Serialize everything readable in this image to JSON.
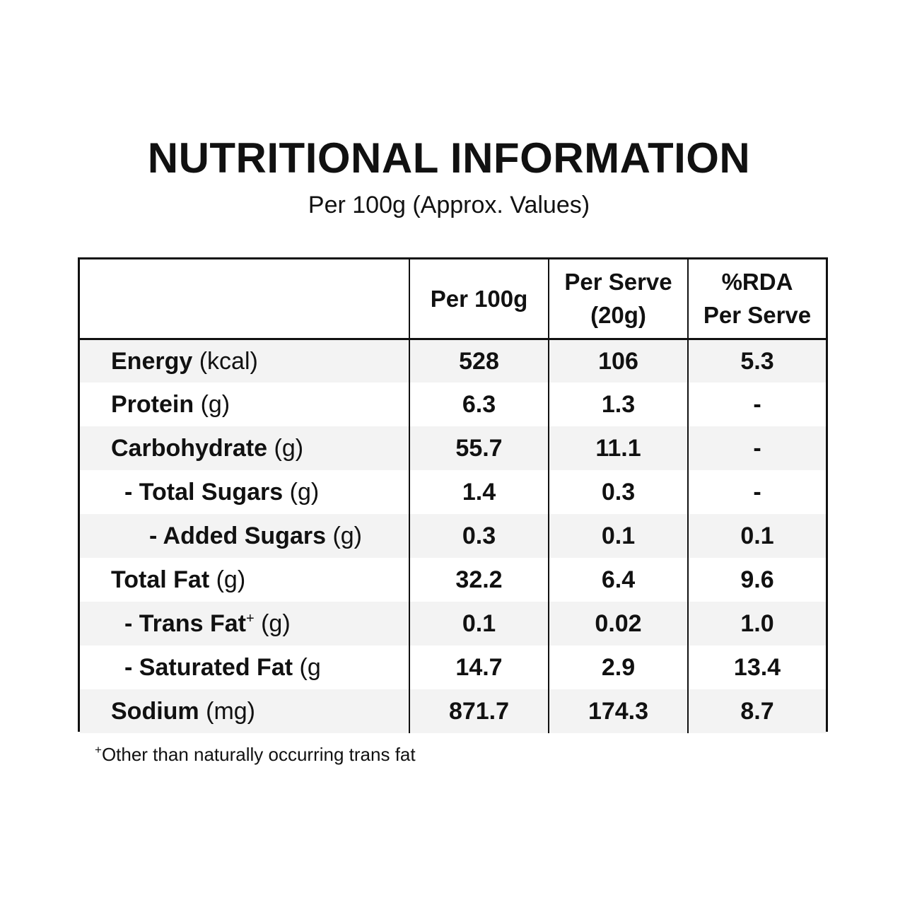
{
  "title": "NUTRITIONAL INFORMATION",
  "subtitle": "Per 100g (Approx. Values)",
  "table": {
    "headers": {
      "per_100g": "Per 100g",
      "per_serve_line1": "Per Serve",
      "per_serve_line2": "(20g)",
      "rda_line1": "%RDA",
      "rda_line2": "Per Serve"
    },
    "rows": [
      {
        "prefix": "",
        "name": "Energy",
        "unit": " (kcal)",
        "mark": "",
        "per_100g": "528",
        "per_serve": "106",
        "rda": "5.3"
      },
      {
        "prefix": "",
        "name": "Protein",
        "unit": " (g)",
        "mark": "",
        "per_100g": "6.3",
        "per_serve": "1.3",
        "rda": "-"
      },
      {
        "prefix": "",
        "name": "Carbohydrate",
        "unit": " (g)",
        "mark": "",
        "per_100g": "55.7",
        "per_serve": "11.1",
        "rda": "-"
      },
      {
        "prefix": "- ",
        "name": "Total Sugars",
        "unit": " (g)",
        "mark": "",
        "per_100g": "1.4",
        "per_serve": "0.3",
        "rda": "-"
      },
      {
        "prefix": "- ",
        "name": "Added Sugars",
        "unit": " (g)",
        "mark": "",
        "per_100g": "0.3",
        "per_serve": "0.1",
        "rda": "0.1"
      },
      {
        "prefix": "",
        "name": "Total Fat",
        "unit": " (g)",
        "mark": "",
        "per_100g": "32.2",
        "per_serve": "6.4",
        "rda": "9.6"
      },
      {
        "prefix": "- ",
        "name": "Trans Fat",
        "unit": " (g)",
        "mark": "+",
        "per_100g": "0.1",
        "per_serve": "0.02",
        "rda": "1.0"
      },
      {
        "prefix": "- ",
        "name": "Saturated Fat",
        "unit": " (g",
        "mark": "",
        "per_100g": "14.7",
        "per_serve": "2.9",
        "rda": "13.4"
      },
      {
        "prefix": "",
        "name": "Sodium",
        "unit": " (mg)",
        "mark": "",
        "per_100g": "871.7",
        "per_serve": "174.3",
        "rda": "8.7"
      }
    ]
  },
  "footnote": {
    "mark": "+",
    "text": "Other than naturally occurring trans fat"
  }
}
